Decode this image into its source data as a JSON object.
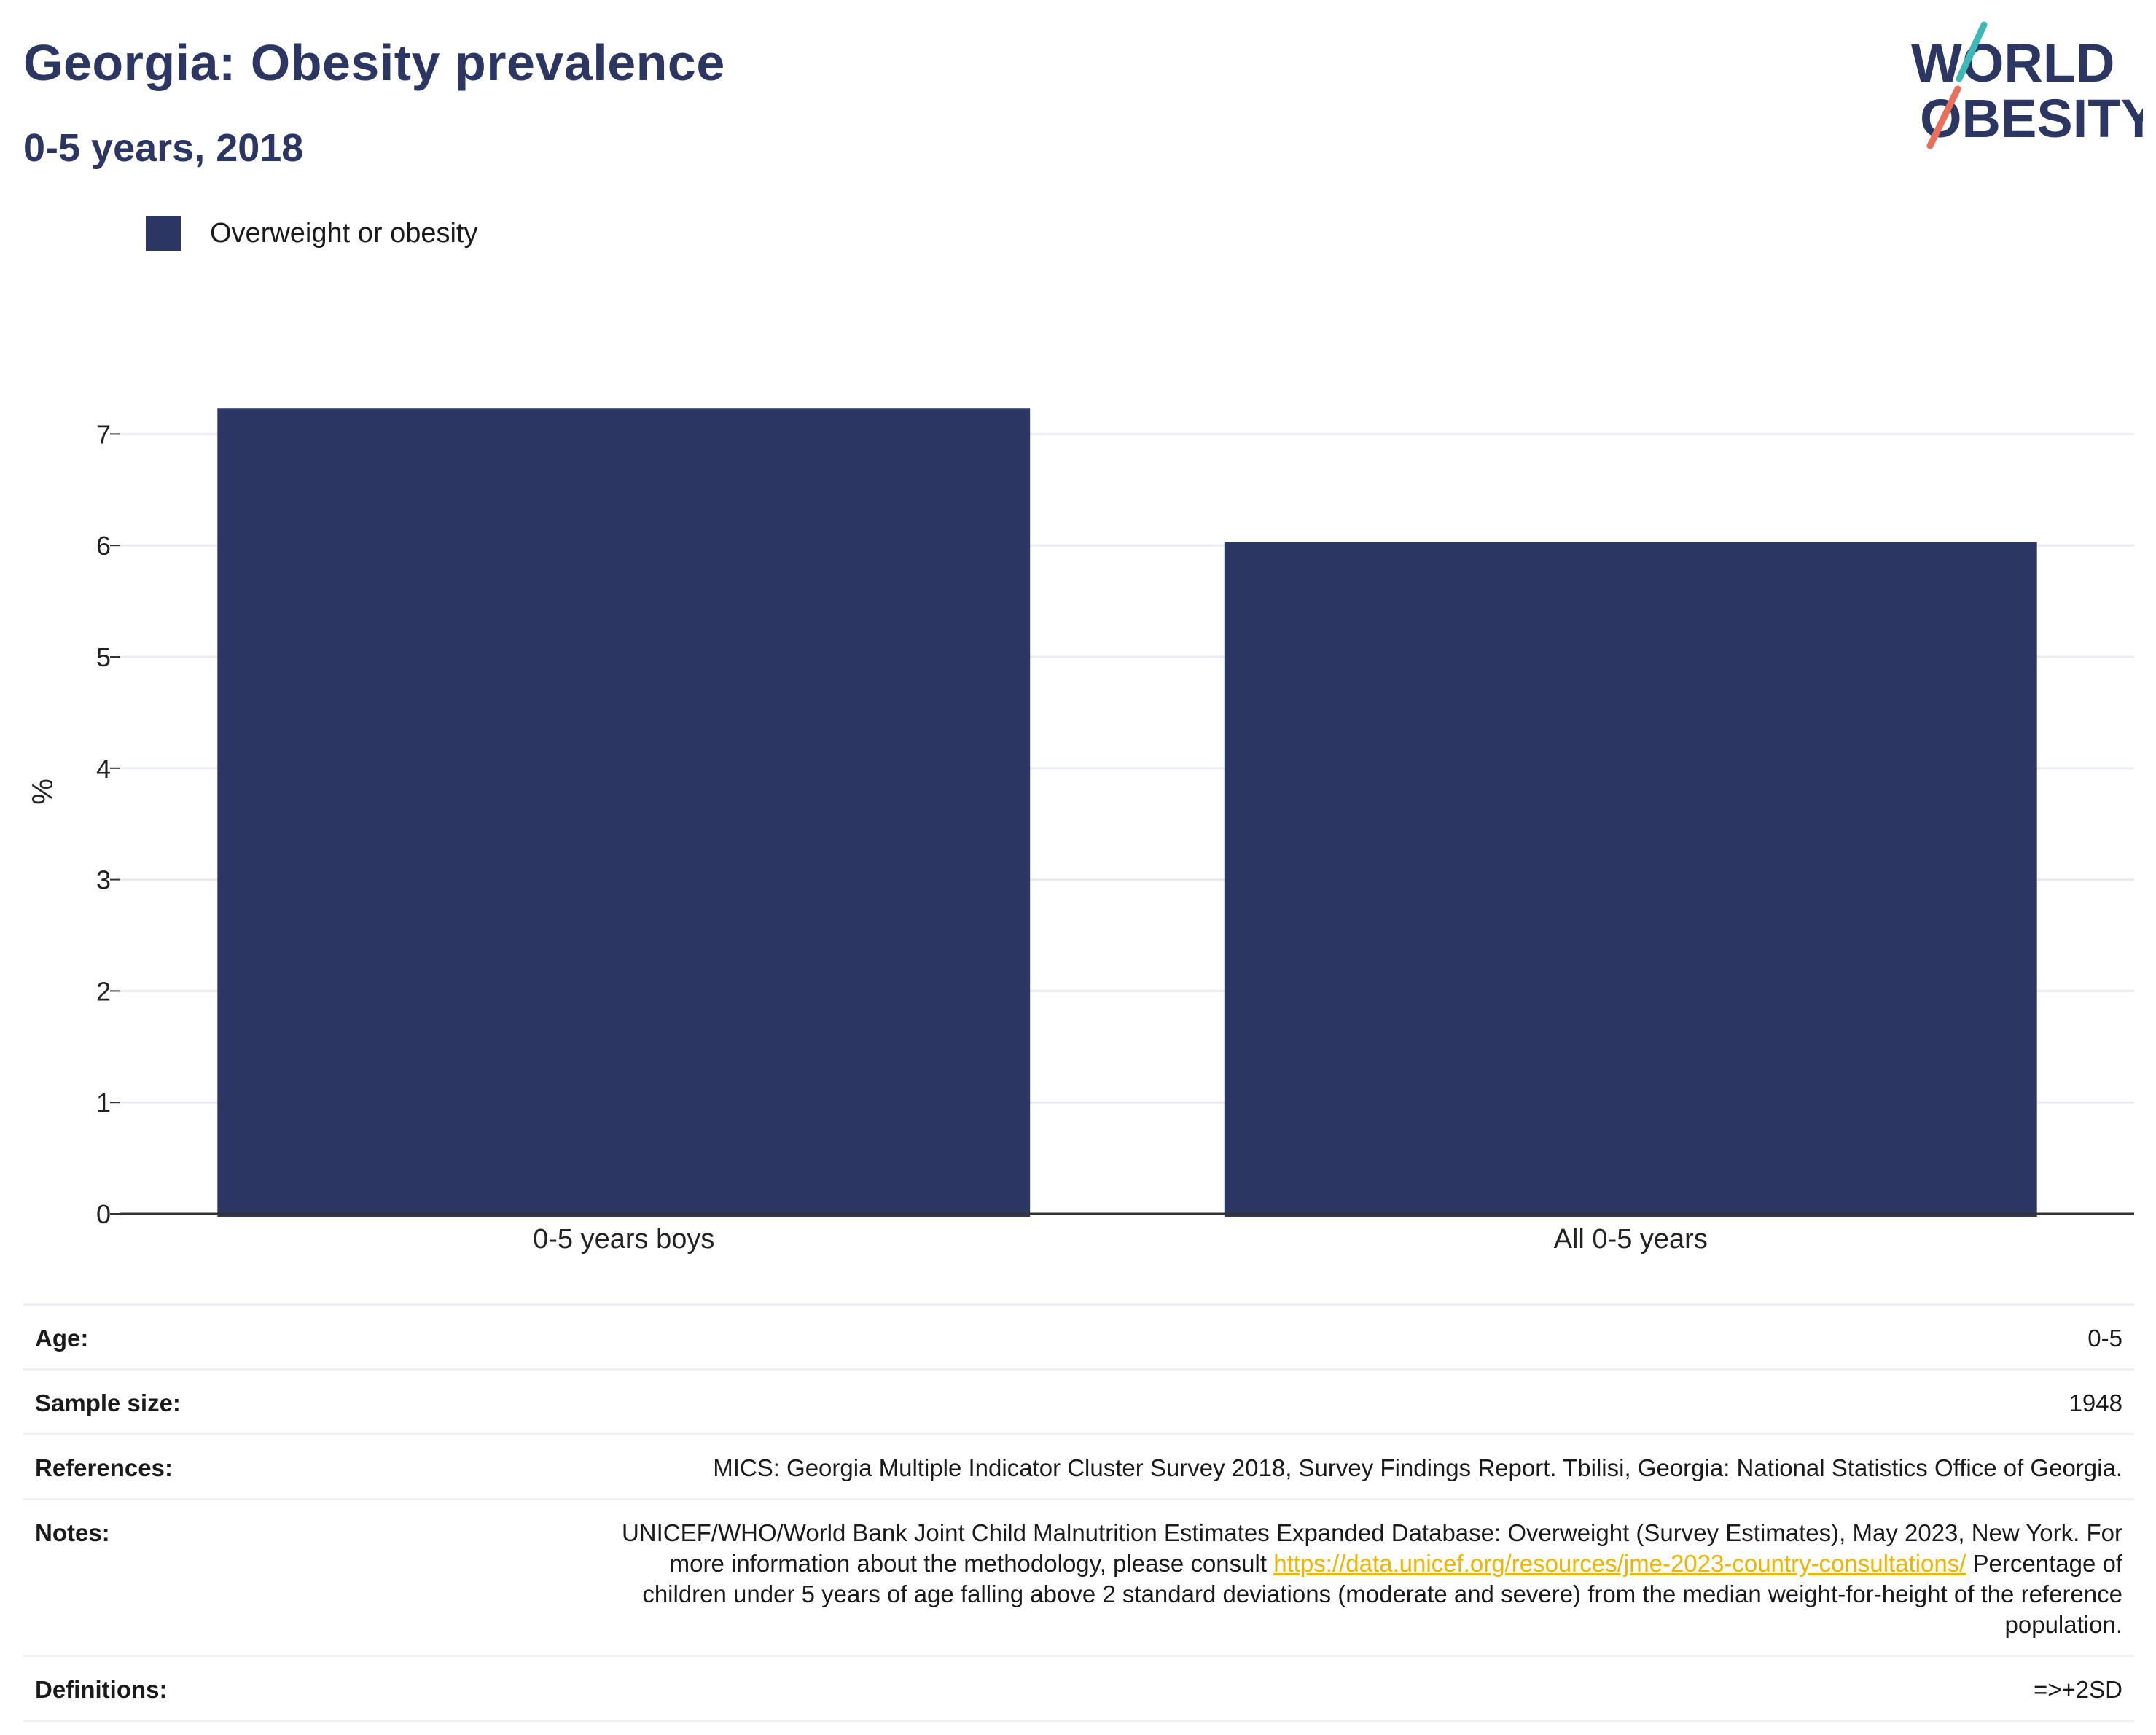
{
  "header": {
    "title": "Georgia: Obesity prevalence",
    "subtitle": "0-5 years, 2018"
  },
  "logo": {
    "line1": "WORLD",
    "line2": "OBESITY",
    "colors": {
      "navy": "#2b3663",
      "teal": "#3fb8b8",
      "coral": "#e8705a"
    }
  },
  "chart_data": {
    "type": "bar",
    "categories": [
      "0-5 years boys",
      "All 0-5 years"
    ],
    "series": [
      {
        "name": "Overweight or obesity",
        "values": [
          7.23,
          6.03
        ],
        "color": "#2b3663"
      }
    ],
    "ylabel": "%",
    "ylim": [
      0,
      7.2
    ],
    "yticks": [
      0,
      1,
      2,
      3,
      4,
      5,
      6,
      7
    ],
    "grid": true,
    "legend_position": "top-left"
  },
  "info_table": {
    "age": {
      "label": "Age:",
      "value": "0-5"
    },
    "sample_size": {
      "label": "Sample size:",
      "value": "1948"
    },
    "references": {
      "label": "References:",
      "value": "MICS: Georgia Multiple Indicator Cluster Survey 2018, Survey Findings Report. Tbilisi, Georgia: National Statistics Office of Georgia."
    },
    "notes": {
      "label": "Notes:",
      "text_before": "UNICEF/WHO/World Bank Joint Child Malnutrition Estimates Expanded Database: Overweight (Survey Estimates), May 2023, New York. For more information about the methodology, please consult ",
      "link": "https://data.unicef.org/resources/jme-2023-country-consultations/",
      "text_after": " Percentage of children under 5 years of age falling above 2 standard deviations (moderate and severe) from the median weight-for-height of the reference population."
    },
    "definitions": {
      "label": "Definitions:",
      "value": "=>+2SD"
    }
  }
}
